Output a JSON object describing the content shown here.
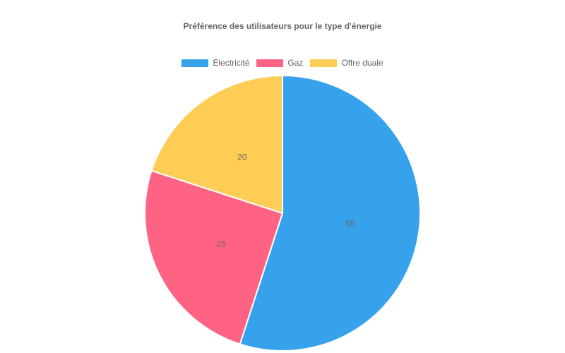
{
  "chart_data": {
    "type": "pie",
    "title": "Préférence des utilisateurs pour le type d'énergie",
    "categories": [
      "Électricité",
      "Gaz",
      "Offre duale"
    ],
    "values": [
      55,
      25,
      20
    ],
    "colors": [
      "#36a2eb",
      "#ff6384",
      "#ffcd56"
    ],
    "legend_position": "top"
  }
}
